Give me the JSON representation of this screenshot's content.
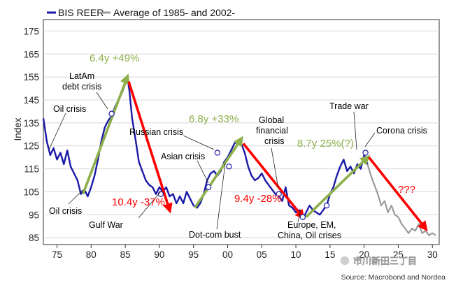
{
  "chart_data": {
    "type": "line",
    "title": "",
    "xlabel": "",
    "ylabel": "Index",
    "xlim": [
      1973,
      2031
    ],
    "ylim": [
      82,
      180
    ],
    "x_ticks": [
      1975,
      1980,
      1985,
      1990,
      1995,
      2000,
      2005,
      2010,
      2015,
      2020,
      2025,
      2030
    ],
    "x_tick_labels": [
      "75",
      "80",
      "85",
      "90",
      "95",
      "00",
      "05",
      "10",
      "15",
      "20",
      "25",
      "30"
    ],
    "y_ticks": [
      85,
      95,
      105,
      115,
      125,
      135,
      145,
      155,
      165,
      175
    ],
    "y_tick_labels": [
      "85",
      "95",
      "105",
      "115",
      "125",
      "135",
      "145",
      "155",
      "165",
      "175"
    ],
    "legend": {
      "position": "top-left",
      "entries": [
        "BIS REER",
        "Average of 1985- and 2002-"
      ]
    },
    "series": [
      {
        "name": "BIS REER",
        "color": "#1a1aa8",
        "x": [
          1973.0,
          1973.5,
          1974.0,
          1974.5,
          1975.0,
          1975.5,
          1976.0,
          1976.5,
          1977.0,
          1977.5,
          1978.0,
          1978.5,
          1979.0,
          1979.5,
          1980.0,
          1980.5,
          1981.0,
          1981.5,
          1982.0,
          1982.5,
          1983.0,
          1983.5,
          1984.0,
          1984.5,
          1985.0,
          1985.3,
          1985.6,
          1986.0,
          1986.5,
          1987.0,
          1987.5,
          1988.0,
          1988.5,
          1989.0,
          1989.5,
          1990.0,
          1990.5,
          1991.0,
          1991.5,
          1992.0,
          1992.5,
          1993.0,
          1993.5,
          1994.0,
          1994.5,
          1995.0,
          1995.5,
          1996.0,
          1996.5,
          1997.0,
          1997.5,
          1998.0,
          1998.5,
          1999.0,
          1999.5,
          2000.0,
          2000.5,
          2001.0,
          2001.5,
          2002.0,
          2002.5,
          2003.0,
          2003.5,
          2004.0,
          2004.5,
          2005.0,
          2005.5,
          2006.0,
          2006.5,
          2007.0,
          2007.5,
          2008.0,
          2008.5,
          2009.0,
          2009.5,
          2010.0,
          2010.5,
          2011.0,
          2011.5,
          2012.0,
          2012.5,
          2013.0,
          2013.5,
          2014.0,
          2014.5,
          2015.0,
          2015.5,
          2016.0,
          2016.5,
          2017.0,
          2017.5,
          2018.0,
          2018.5,
          2019.0,
          2019.5,
          2020.0,
          2020.5
        ],
        "y": [
          137,
          127,
          121,
          124,
          119,
          122,
          117,
          123,
          116,
          113,
          110,
          104,
          106,
          103,
          107,
          112,
          119,
          127,
          133,
          136,
          138,
          142,
          145,
          148,
          152,
          155,
          149,
          137,
          128,
          118,
          114,
          110,
          108,
          107,
          104,
          107,
          105,
          107,
          103,
          104,
          100,
          103,
          100,
          105,
          102,
          99,
          98,
          100,
          104,
          110,
          113,
          114,
          112,
          114,
          118,
          120,
          123,
          126,
          127,
          126,
          122,
          116,
          112,
          110,
          111,
          113,
          110,
          108,
          106,
          104,
          103,
          101,
          107,
          99,
          98,
          96,
          97,
          93,
          96,
          99,
          97,
          96,
          95,
          97,
          99,
          104,
          107,
          112,
          116,
          119,
          114,
          116,
          113,
          117,
          115,
          121,
          117
        ]
      },
      {
        "name": "Average of 1985- and 2002-",
        "color": "#9a9a9a",
        "x": [
          2020.5,
          2021.0,
          2021.5,
          2022.0,
          2022.5,
          2023.0,
          2023.5,
          2024.0,
          2024.5,
          2025.0,
          2025.5,
          2026.0,
          2026.5,
          2027.0,
          2027.5,
          2028.0,
          2028.5,
          2029.0,
          2029.5,
          2030.0,
          2030.5
        ],
        "y": [
          117,
          112,
          108,
          104,
          99,
          101,
          96,
          99,
          95,
          94,
          91,
          89,
          87,
          89,
          88,
          91,
          87,
          88,
          86,
          87,
          86
        ]
      }
    ],
    "annotations": [
      {
        "text": "Oil crisis",
        "x": 1973.5,
        "y": 121
      },
      {
        "text": "Oil crisis",
        "x": 1978.8,
        "y": 103
      },
      {
        "text": "LatAm",
        "x": 1983.0,
        "y": 139
      },
      {
        "text": "debt crisis",
        "x": 1983.0,
        "y": 139
      },
      {
        "text": "Gulf War",
        "x": 1990.2,
        "y": 104
      },
      {
        "text": "Russian crisis",
        "x": 1998.5,
        "y": 120
      },
      {
        "text": "Asian crisis",
        "x": 1997.2,
        "y": 105
      },
      {
        "text": "Dot-com bust",
        "x": 2000.2,
        "y": 116
      },
      {
        "text": "Global",
        "x": 2007.5,
        "y": 104
      },
      {
        "text": "financial",
        "x": 2007.5,
        "y": 104
      },
      {
        "text": "crisis",
        "x": 2007.5,
        "y": 104
      },
      {
        "text": "Europe, EM,",
        "x": 2011.0,
        "y": 94
      },
      {
        "text": "China, Oil crises",
        "x": 2011.0,
        "y": 94
      },
      {
        "text": "Trade war",
        "x": 2019.5,
        "y": 119
      },
      {
        "text": "Corona crisis",
        "x": 2020.2,
        "y": 121
      }
    ],
    "trend_arrows": [
      {
        "label": "6.4y +49%",
        "from": [
          1978.8,
          104
        ],
        "to": [
          1985.3,
          155
        ],
        "kind": "gain"
      },
      {
        "label": "10.4y -37%",
        "from": [
          1985.5,
          153
        ],
        "to": [
          1991.5,
          97
        ],
        "kind": "loss"
      },
      {
        "label": "6.8y +33%",
        "from": [
          1995.2,
          98
        ],
        "to": [
          2002.0,
          128
        ],
        "kind": "gain"
      },
      {
        "label": "9.4y -28%",
        "from": [
          2002.3,
          126
        ],
        "to": [
          2011.0,
          94
        ],
        "kind": "loss"
      },
      {
        "label": "8.7y 25%(?)",
        "from": [
          2011.5,
          94
        ],
        "to": [
          2020.5,
          120
        ],
        "kind": "gain"
      },
      {
        "label": "???",
        "from": [
          2020.7,
          120
        ],
        "to": [
          2029.0,
          89
        ],
        "kind": "loss"
      }
    ],
    "source": "Source: Macrobond and Nordea",
    "watermark": "市川新田三丁目"
  }
}
